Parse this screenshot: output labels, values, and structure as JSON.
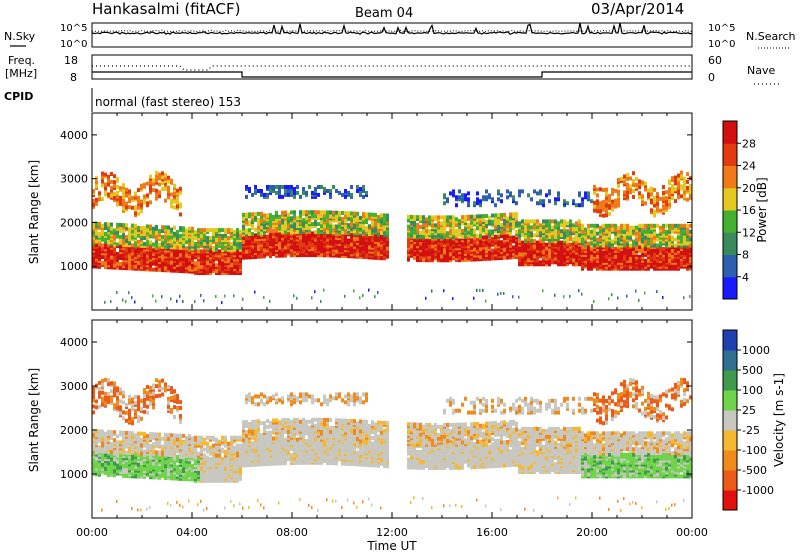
{
  "header": {
    "station": "Hankasalmi (fitACF)",
    "beam": "Beam 04",
    "date": "03/Apr/2014"
  },
  "noise_panel": {
    "left_label": "N.Sky",
    "right_label": "N.Search",
    "left_ticks": [
      "10^5",
      "10^0"
    ],
    "right_ticks": [
      "10^5",
      "10^0"
    ]
  },
  "freq_panel": {
    "left_label_1": "Freq.",
    "left_label_2": "[MHz]",
    "right_label": "Nave",
    "left_ticks": [
      "18",
      "8"
    ],
    "right_ticks": [
      "60",
      "0"
    ]
  },
  "cpid": {
    "label": "CPID",
    "text": "normal (fast stereo) 153"
  },
  "colors": {
    "power_scale": [
      "#1a1aff",
      "#2b5fb0",
      "#3a8a5c",
      "#43b030",
      "#e3c81f",
      "#f07a18",
      "#e23b10",
      "#d21010"
    ],
    "velocity_scale": [
      "#e20f0f",
      "#ec5a18",
      "#f08a1a",
      "#f5b830",
      "#c8c8c0",
      "#6fd44a",
      "#3f9a4e",
      "#2f6f8f",
      "#1f3fb3"
    ]
  },
  "chart_data": [
    {
      "type": "heatmap",
      "name": "power",
      "title": "",
      "xlabel": "",
      "ylabel": "Slant Range [km]",
      "colorbar_label": "Power [dB]",
      "xlim_hours": [
        0,
        24
      ],
      "ylim_km": [
        0,
        4500
      ],
      "x_ticks": [
        "00:00",
        "04:00",
        "08:00",
        "12:00",
        "16:00",
        "20:00",
        "00:00"
      ],
      "y_ticks": [
        "1000",
        "2000",
        "3000",
        "4000"
      ],
      "colorbar_ticks": [
        "4",
        "8",
        "12",
        "16",
        "20",
        "24",
        "28"
      ],
      "grid": false
    },
    {
      "type": "heatmap",
      "name": "velocity",
      "title": "",
      "xlabel": "Time UT",
      "ylabel": "Slant Range [km]",
      "colorbar_label": "Velocity [m s-1]",
      "xlim_hours": [
        0,
        24
      ],
      "ylim_km": [
        0,
        4500
      ],
      "x_ticks": [
        "00:00",
        "04:00",
        "08:00",
        "12:00",
        "16:00",
        "20:00",
        "00:00"
      ],
      "y_ticks": [
        "1000",
        "2000",
        "3000",
        "4000"
      ],
      "colorbar_ticks": [
        "1000",
        "500",
        "100",
        "25",
        "-25",
        "-100",
        "-500",
        "-1000"
      ],
      "grid": false
    }
  ]
}
